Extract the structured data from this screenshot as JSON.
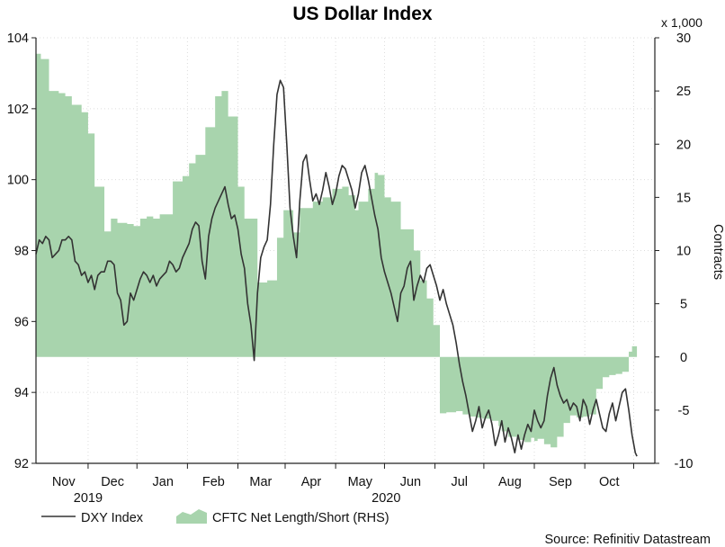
{
  "chart_data": {
    "type": "line",
    "title": "US Dollar Index",
    "y_left": {
      "ylim": [
        92,
        104
      ],
      "ticks": [
        92,
        94,
        96,
        98,
        100,
        102,
        104
      ]
    },
    "y_right": {
      "label": "Contracts",
      "multiplier_label": "x 1,000",
      "ylim": [
        -10,
        30
      ],
      "ticks": [
        -10,
        -5,
        0,
        5,
        10,
        15,
        20,
        25,
        30
      ]
    },
    "x_labels": [
      {
        "label": "Nov",
        "day": 17
      },
      {
        "label": "Dec",
        "day": 47
      },
      {
        "label": "Jan",
        "day": 78
      },
      {
        "label": "Feb",
        "day": 109
      },
      {
        "label": "Mar",
        "day": 138
      },
      {
        "label": "Apr",
        "day": 169
      },
      {
        "label": "May",
        "day": 199
      },
      {
        "label": "Jun",
        "day": 230
      },
      {
        "label": "Jul",
        "day": 260
      },
      {
        "label": "Aug",
        "day": 291
      },
      {
        "label": "Sep",
        "day": 322
      },
      {
        "label": "Oct",
        "day": 352
      }
    ],
    "x_year_labels": [
      {
        "label": "2019",
        "day": 32
      },
      {
        "label": "2020",
        "day": 215
      }
    ],
    "x_tick_days": [
      32,
      62,
      93,
      124,
      153,
      184,
      214,
      245,
      275,
      306,
      337,
      367
    ],
    "x_range_days": [
      0,
      380
    ],
    "source": "Source: Refinitiv Datastream",
    "series": [
      {
        "name": "DXY Index",
        "axis": "left",
        "color": "#333333",
        "points": [
          [
            0,
            97.9
          ],
          [
            2,
            98.3
          ],
          [
            4,
            98.2
          ],
          [
            6,
            98.4
          ],
          [
            8,
            98.3
          ],
          [
            10,
            97.8
          ],
          [
            12,
            97.9
          ],
          [
            14,
            98.0
          ],
          [
            16,
            98.3
          ],
          [
            18,
            98.3
          ],
          [
            20,
            98.4
          ],
          [
            22,
            98.3
          ],
          [
            24,
            97.7
          ],
          [
            26,
            97.6
          ],
          [
            28,
            97.3
          ],
          [
            30,
            97.4
          ],
          [
            32,
            97.1
          ],
          [
            34,
            97.3
          ],
          [
            36,
            96.9
          ],
          [
            38,
            97.3
          ],
          [
            40,
            97.4
          ],
          [
            42,
            97.4
          ],
          [
            44,
            97.7
          ],
          [
            46,
            97.7
          ],
          [
            48,
            97.6
          ],
          [
            50,
            96.8
          ],
          [
            52,
            96.6
          ],
          [
            54,
            95.9
          ],
          [
            56,
            96.0
          ],
          [
            58,
            96.8
          ],
          [
            60,
            96.6
          ],
          [
            62,
            96.9
          ],
          [
            64,
            97.2
          ],
          [
            66,
            97.4
          ],
          [
            68,
            97.3
          ],
          [
            70,
            97.1
          ],
          [
            72,
            97.3
          ],
          [
            74,
            97.0
          ],
          [
            76,
            97.2
          ],
          [
            78,
            97.3
          ],
          [
            80,
            97.4
          ],
          [
            82,
            97.7
          ],
          [
            84,
            97.6
          ],
          [
            86,
            97.4
          ],
          [
            88,
            97.5
          ],
          [
            90,
            97.8
          ],
          [
            92,
            98.0
          ],
          [
            94,
            98.2
          ],
          [
            96,
            98.6
          ],
          [
            98,
            98.8
          ],
          [
            100,
            98.7
          ],
          [
            102,
            97.7
          ],
          [
            104,
            97.2
          ],
          [
            106,
            98.4
          ],
          [
            108,
            98.9
          ],
          [
            110,
            99.2
          ],
          [
            112,
            99.4
          ],
          [
            114,
            99.6
          ],
          [
            116,
            99.8
          ],
          [
            118,
            99.3
          ],
          [
            120,
            98.9
          ],
          [
            122,
            99.0
          ],
          [
            124,
            98.6
          ],
          [
            126,
            97.9
          ],
          [
            128,
            97.5
          ],
          [
            130,
            96.5
          ],
          [
            132,
            95.9
          ],
          [
            134,
            94.9
          ],
          [
            136,
            96.8
          ],
          [
            138,
            97.8
          ],
          [
            140,
            98.1
          ],
          [
            142,
            98.3
          ],
          [
            144,
            99.3
          ],
          [
            146,
            101.0
          ],
          [
            148,
            102.4
          ],
          [
            150,
            102.8
          ],
          [
            152,
            102.6
          ],
          [
            154,
            101.0
          ],
          [
            156,
            99.2
          ],
          [
            158,
            98.4
          ],
          [
            160,
            97.8
          ],
          [
            162,
            99.4
          ],
          [
            164,
            100.5
          ],
          [
            166,
            100.7
          ],
          [
            168,
            100.0
          ],
          [
            170,
            99.4
          ],
          [
            172,
            99.6
          ],
          [
            174,
            99.3
          ],
          [
            176,
            99.7
          ],
          [
            178,
            100.2
          ],
          [
            180,
            99.8
          ],
          [
            182,
            99.3
          ],
          [
            184,
            99.6
          ],
          [
            186,
            100.1
          ],
          [
            188,
            100.4
          ],
          [
            190,
            100.3
          ],
          [
            192,
            100.0
          ],
          [
            194,
            99.7
          ],
          [
            196,
            99.2
          ],
          [
            198,
            99.6
          ],
          [
            200,
            100.2
          ],
          [
            202,
            100.4
          ],
          [
            204,
            100.0
          ],
          [
            206,
            99.5
          ],
          [
            208,
            99.0
          ],
          [
            210,
            98.6
          ],
          [
            212,
            97.8
          ],
          [
            214,
            97.4
          ],
          [
            216,
            97.1
          ],
          [
            218,
            96.8
          ],
          [
            220,
            96.4
          ],
          [
            222,
            96.0
          ],
          [
            224,
            96.8
          ],
          [
            226,
            97.0
          ],
          [
            228,
            97.5
          ],
          [
            230,
            97.7
          ],
          [
            232,
            96.6
          ],
          [
            234,
            97.0
          ],
          [
            236,
            97.3
          ],
          [
            238,
            97.1
          ],
          [
            240,
            97.5
          ],
          [
            242,
            97.6
          ],
          [
            244,
            97.3
          ],
          [
            246,
            97.0
          ],
          [
            248,
            96.6
          ],
          [
            250,
            96.9
          ],
          [
            252,
            96.5
          ],
          [
            254,
            96.2
          ],
          [
            256,
            95.9
          ],
          [
            258,
            95.4
          ],
          [
            260,
            94.8
          ],
          [
            262,
            94.3
          ],
          [
            264,
            93.9
          ],
          [
            266,
            93.4
          ],
          [
            268,
            92.9
          ],
          [
            270,
            93.2
          ],
          [
            272,
            93.6
          ],
          [
            274,
            93.0
          ],
          [
            276,
            93.3
          ],
          [
            278,
            93.5
          ],
          [
            280,
            93.1
          ],
          [
            282,
            92.5
          ],
          [
            284,
            92.8
          ],
          [
            286,
            93.2
          ],
          [
            288,
            92.6
          ],
          [
            290,
            93.0
          ],
          [
            292,
            92.7
          ],
          [
            294,
            92.3
          ],
          [
            296,
            92.8
          ],
          [
            298,
            92.4
          ],
          [
            300,
            92.8
          ],
          [
            302,
            93.1
          ],
          [
            304,
            92.9
          ],
          [
            306,
            93.5
          ],
          [
            308,
            93.2
          ],
          [
            310,
            93.0
          ],
          [
            312,
            93.2
          ],
          [
            314,
            93.9
          ],
          [
            316,
            94.4
          ],
          [
            318,
            94.7
          ],
          [
            320,
            94.2
          ],
          [
            322,
            93.9
          ],
          [
            324,
            93.7
          ],
          [
            326,
            93.8
          ],
          [
            328,
            93.5
          ],
          [
            330,
            93.7
          ],
          [
            332,
            93.6
          ],
          [
            334,
            93.2
          ],
          [
            336,
            93.8
          ],
          [
            338,
            93.6
          ],
          [
            340,
            93.1
          ],
          [
            342,
            93.5
          ],
          [
            344,
            93.8
          ],
          [
            346,
            93.4
          ],
          [
            348,
            93.0
          ],
          [
            350,
            92.9
          ],
          [
            352,
            93.4
          ],
          [
            354,
            93.7
          ],
          [
            356,
            93.2
          ],
          [
            358,
            93.6
          ],
          [
            360,
            94.0
          ],
          [
            362,
            94.1
          ],
          [
            364,
            93.5
          ],
          [
            366,
            92.8
          ],
          [
            368,
            92.3
          ],
          [
            369,
            92.2
          ]
        ]
      },
      {
        "name": "CFTC Net Length/Short (RHS)",
        "axis": "right",
        "color": "#a8d4ad",
        "steps": [
          [
            0,
            28.5
          ],
          [
            3,
            28
          ],
          [
            8,
            25
          ],
          [
            14,
            24.8
          ],
          [
            18,
            24.5
          ],
          [
            22,
            23.7
          ],
          [
            28,
            23
          ],
          [
            32,
            21
          ],
          [
            36,
            16
          ],
          [
            42,
            11.8
          ],
          [
            46,
            13
          ],
          [
            50,
            12.6
          ],
          [
            56,
            12.5
          ],
          [
            60,
            12.3
          ],
          [
            64,
            13
          ],
          [
            68,
            13.2
          ],
          [
            72,
            13
          ],
          [
            76,
            13.4
          ],
          [
            84,
            16.5
          ],
          [
            90,
            17
          ],
          [
            94,
            18.2
          ],
          [
            98,
            19
          ],
          [
            104,
            21.6
          ],
          [
            110,
            24.5
          ],
          [
            114,
            25
          ],
          [
            118,
            22.6
          ],
          [
            124,
            16
          ],
          [
            128,
            13
          ],
          [
            136,
            7
          ],
          [
            142,
            7.2
          ],
          [
            148,
            11.2
          ],
          [
            152,
            13.8
          ],
          [
            158,
            11.7
          ],
          [
            162,
            14
          ],
          [
            170,
            14.6
          ],
          [
            176,
            15
          ],
          [
            182,
            15.8
          ],
          [
            188,
            16
          ],
          [
            192,
            15.2
          ],
          [
            196,
            13.8
          ],
          [
            198,
            14.6
          ],
          [
            204,
            15.8
          ],
          [
            208,
            17.3
          ],
          [
            210,
            17.1
          ],
          [
            214,
            15
          ],
          [
            218,
            14.6
          ],
          [
            224,
            12
          ],
          [
            232,
            10
          ],
          [
            236,
            7.2
          ],
          [
            240,
            5.5
          ],
          [
            244,
            3
          ],
          [
            248,
            -5.3
          ],
          [
            252,
            -5.2
          ],
          [
            258,
            -5.1
          ],
          [
            262,
            -5.4
          ],
          [
            266,
            -5.6
          ],
          [
            270,
            -5.7
          ],
          [
            274,
            -5.8
          ],
          [
            280,
            -6
          ],
          [
            284,
            -6.5
          ],
          [
            286,
            -7
          ],
          [
            290,
            -7.5
          ],
          [
            296,
            -7.8
          ],
          [
            300,
            -8
          ],
          [
            304,
            -7.6
          ],
          [
            306,
            -7.9
          ],
          [
            308,
            -7.7
          ],
          [
            312,
            -8.2
          ],
          [
            316,
            -8.5
          ],
          [
            320,
            -7.5
          ],
          [
            324,
            -6.2
          ],
          [
            328,
            -5.5
          ],
          [
            332,
            -5.7
          ],
          [
            336,
            -5.6
          ],
          [
            340,
            -5.4
          ],
          [
            344,
            -3
          ],
          [
            348,
            -1.9
          ],
          [
            352,
            -1.7
          ],
          [
            356,
            -1.6
          ],
          [
            360,
            -1.4
          ],
          [
            364,
            0.5
          ],
          [
            366,
            1
          ]
        ],
        "end_day": 369
      }
    ]
  }
}
